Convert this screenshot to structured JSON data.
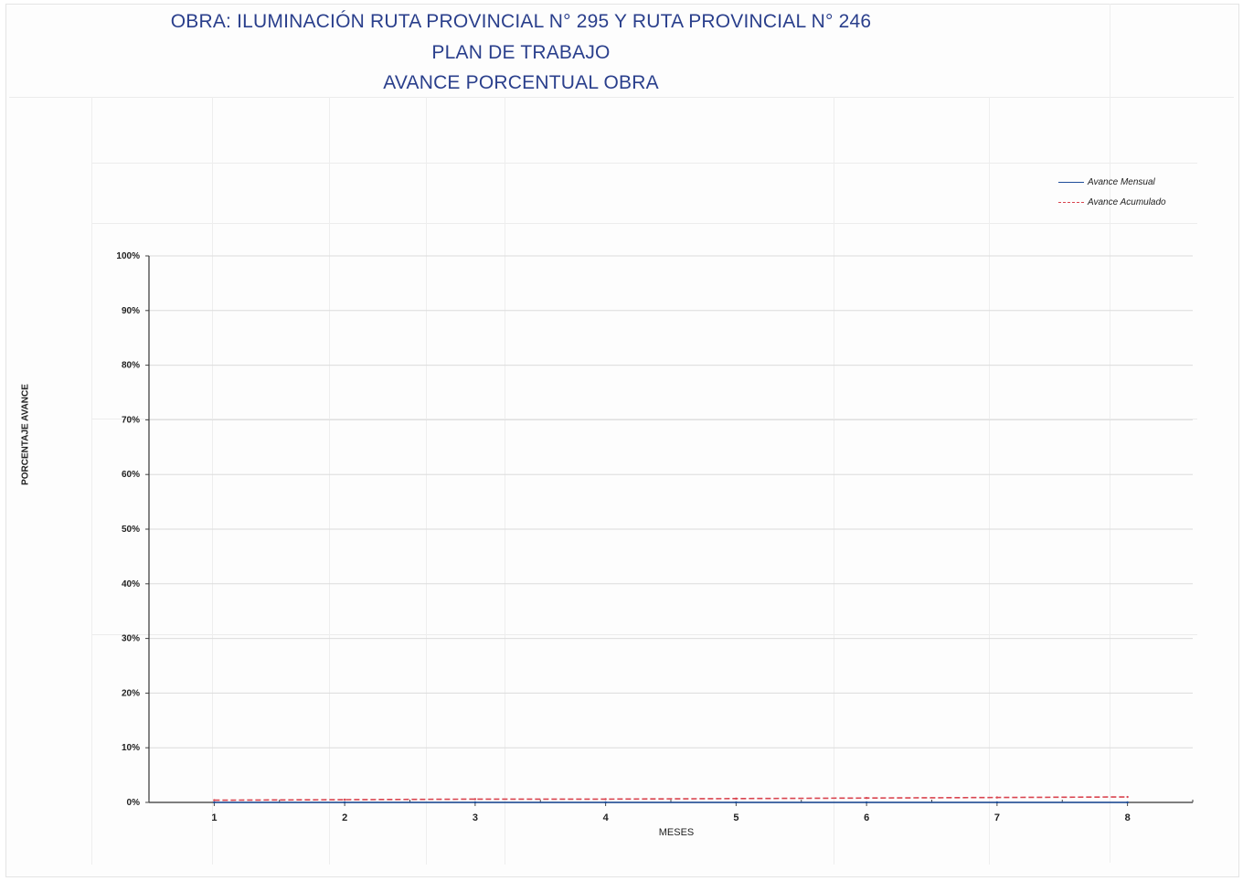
{
  "header": {
    "line1": "OBRA: ILUMINACIÓN RUTA PROVINCIAL N° 295 Y RUTA PROVINCIAL N° 246",
    "line2": "PLAN DE TRABAJO",
    "line3": "AVANCE PORCENTUAL OBRA"
  },
  "chart_data": {
    "type": "line",
    "title": "",
    "xlabel": "MESES",
    "ylabel": "PORCENTAJE AVANCE",
    "x": [
      1,
      2,
      3,
      4,
      5,
      6,
      7,
      8
    ],
    "ylim": [
      0,
      100
    ],
    "yticks": [
      "0%",
      "10%",
      "20%",
      "30%",
      "40%",
      "50%",
      "60%",
      "70%",
      "80%",
      "90%",
      "100%"
    ],
    "series": [
      {
        "name": "Avance Mensual",
        "color": "#1f4e9a",
        "values": [
          0,
          0,
          0,
          0,
          0,
          0,
          0,
          0
        ]
      },
      {
        "name": "Avance Acumulado",
        "color": "#d9444f",
        "values": [
          0.4,
          0.5,
          0.6,
          0.6,
          0.7,
          0.8,
          0.9,
          1.0
        ]
      }
    ],
    "grid": true,
    "legend": "top-right"
  }
}
